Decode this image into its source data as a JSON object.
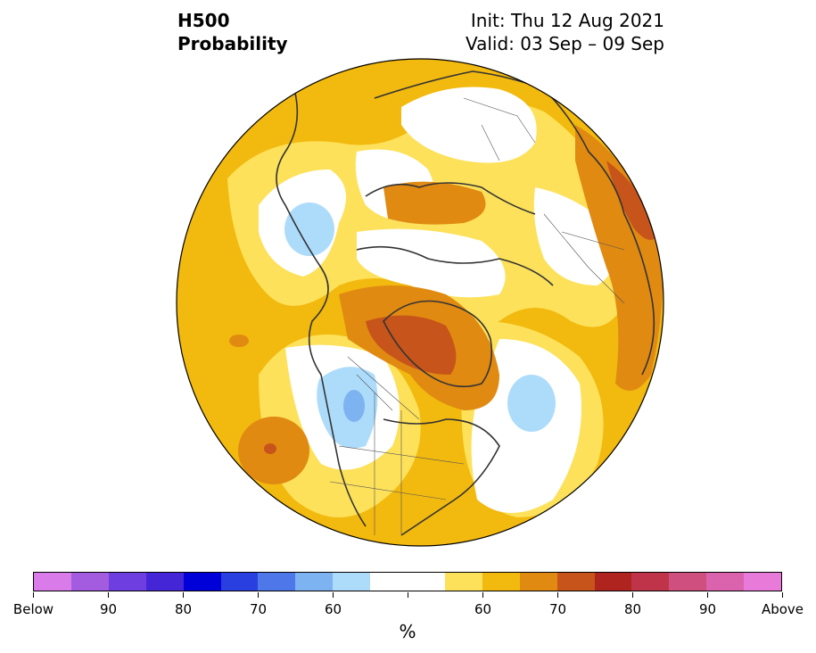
{
  "title": {
    "left_line1": "H500",
    "left_line2": "Probability",
    "right_line1": "Init: Thu 12 Aug 2021",
    "right_line2": "Valid: 03 Sep – 09 Sep"
  },
  "colorbar": {
    "unit": "%",
    "colors": [
      "#d97be8",
      "#a35be0",
      "#6e3ee0",
      "#4426d6",
      "#0000d8",
      "#2a3fe0",
      "#4e78ea",
      "#7db3f0",
      "#addcfb",
      "#ffffff",
      "#fde15a",
      "#f2b90f",
      "#e08a12",
      "#c7541a",
      "#b0241f",
      "#c0344a",
      "#cf4f7e",
      "#db63ad",
      "#e87ad9"
    ],
    "labels": [
      "Below",
      "90",
      "80",
      "70",
      "60",
      "60",
      "70",
      "80",
      "90",
      "Above"
    ]
  },
  "legend_colors": {
    "above_60": "#fde15a",
    "above_65": "#f2b90f",
    "above_70": "#e08a12",
    "above_75": "#c7541a",
    "below_60": "#addcfb",
    "below_65": "#7db3f0",
    "below_70": "#4e78ea",
    "neutral": "#ffffff"
  }
}
